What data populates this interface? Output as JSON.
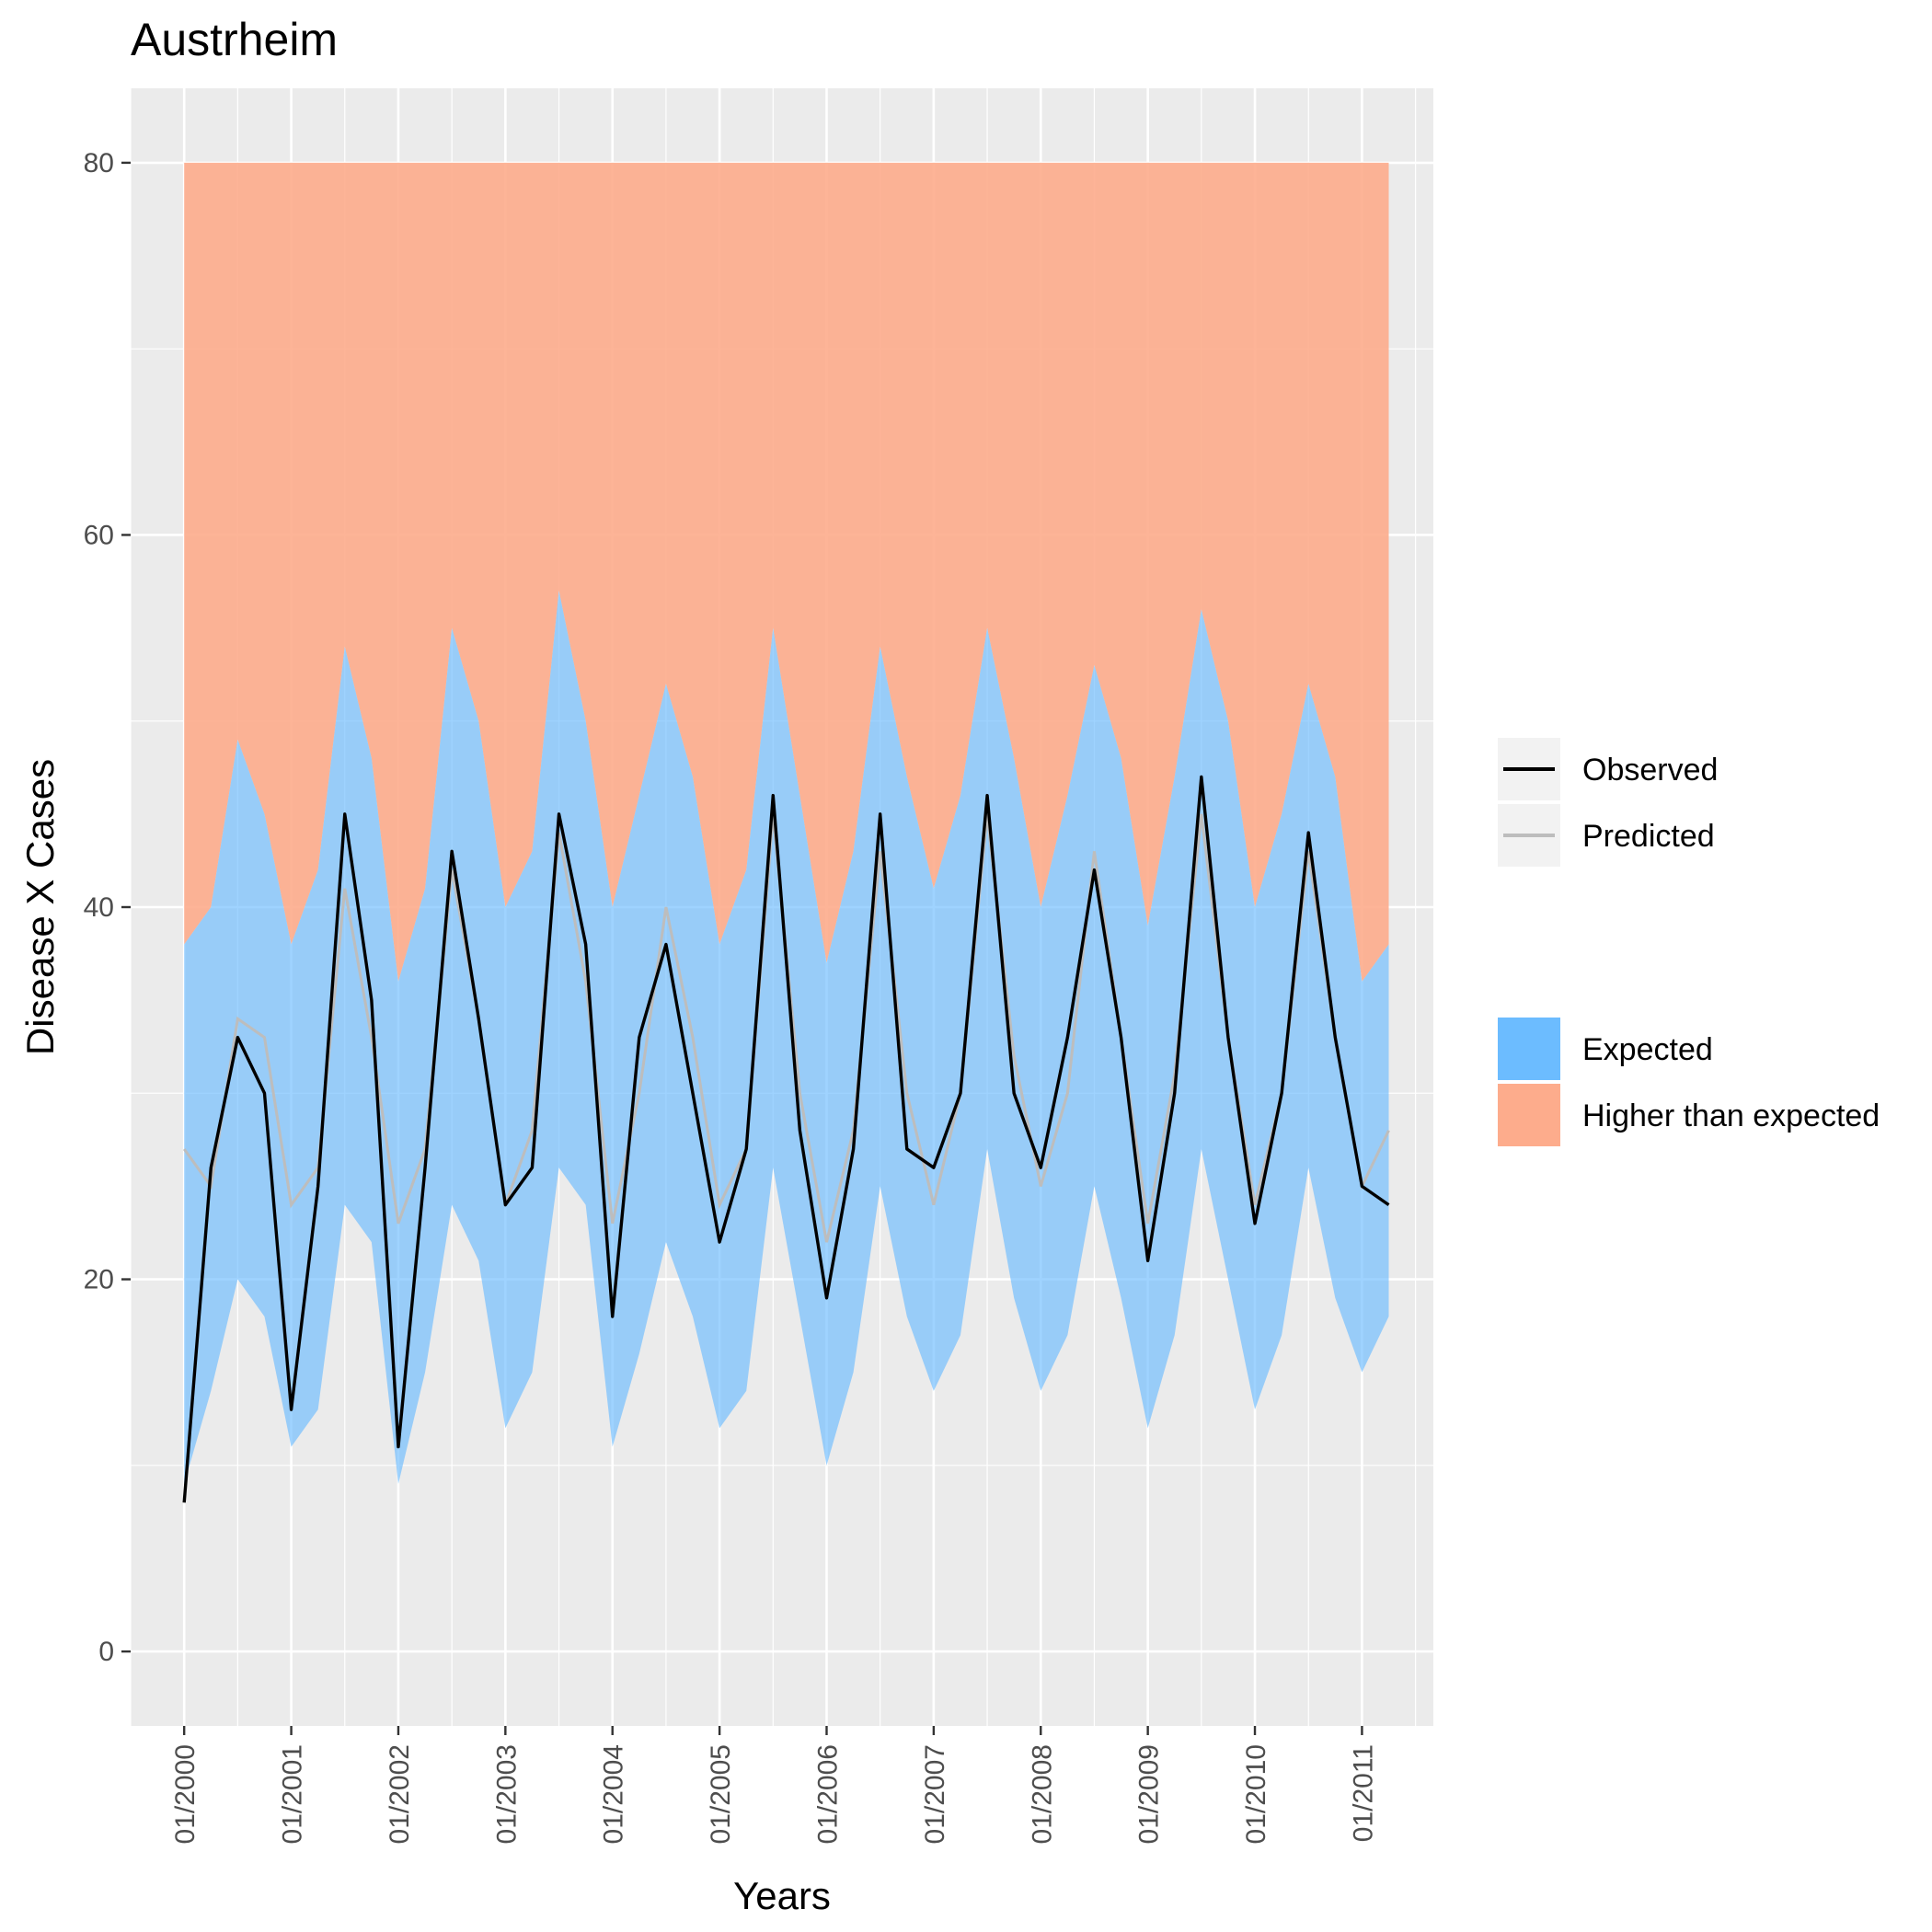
{
  "chart_data": {
    "type": "line",
    "title": "Austrheim",
    "xlabel": "Years",
    "ylabel": "Disease X Cases",
    "x_tick_labels": [
      "01/2000",
      "01/2001",
      "01/2002",
      "01/2003",
      "01/2004",
      "01/2005",
      "01/2006",
      "01/2007",
      "01/2008",
      "01/2009",
      "01/2010",
      "01/2011"
    ],
    "x_tick_dates": [
      "2000-01",
      "2001-01",
      "2002-01",
      "2003-01",
      "2004-01",
      "2005-01",
      "2006-01",
      "2007-01",
      "2008-01",
      "2009-01",
      "2010-01",
      "2011-01"
    ],
    "xlim": [
      "1999-07",
      "2011-09"
    ],
    "y_ticks": [
      0,
      20,
      40,
      60,
      80
    ],
    "ylim": [
      -4,
      84
    ],
    "grid": true,
    "legend_position": "right",
    "higher_than_expected_ceiling": 80,
    "x": [
      "2000-01",
      "2000-04",
      "2000-07",
      "2000-10",
      "2001-01",
      "2001-04",
      "2001-07",
      "2001-10",
      "2002-01",
      "2002-04",
      "2002-07",
      "2002-10",
      "2003-01",
      "2003-04",
      "2003-07",
      "2003-10",
      "2004-01",
      "2004-04",
      "2004-07",
      "2004-10",
      "2005-01",
      "2005-04",
      "2005-07",
      "2005-10",
      "2006-01",
      "2006-04",
      "2006-07",
      "2006-10",
      "2007-01",
      "2007-04",
      "2007-07",
      "2007-10",
      "2008-01",
      "2008-04",
      "2008-07",
      "2008-10",
      "2009-01",
      "2009-04",
      "2009-07",
      "2009-10",
      "2010-01",
      "2010-04",
      "2010-07",
      "2010-10",
      "2011-01",
      "2011-04"
    ],
    "series": [
      {
        "name": "Observed",
        "color": "#000000",
        "values": [
          8,
          26,
          33,
          30,
          13,
          25,
          45,
          35,
          11,
          26,
          43,
          34,
          24,
          26,
          45,
          38,
          18,
          33,
          38,
          30,
          22,
          27,
          46,
          28,
          19,
          27,
          45,
          27,
          26,
          30,
          46,
          30,
          26,
          33,
          42,
          33,
          21,
          30,
          47,
          33,
          23,
          30,
          44,
          33,
          25,
          24
        ]
      },
      {
        "name": "Predicted",
        "color": "#bdbdbd",
        "values": [
          27,
          25,
          34,
          33,
          24,
          26,
          41,
          33,
          23,
          27,
          42,
          34,
          24,
          28,
          44,
          36,
          23,
          30,
          40,
          33,
          24,
          27,
          45,
          30,
          22,
          28,
          43,
          30,
          24,
          30,
          45,
          32,
          25,
          30,
          43,
          33,
          23,
          31,
          45,
          33,
          24,
          30,
          43,
          33,
          25,
          28
        ]
      },
      {
        "name": "Expected",
        "color": "#6cbcff",
        "lower": [
          9,
          14,
          20,
          18,
          11,
          13,
          24,
          22,
          9,
          15,
          24,
          21,
          12,
          15,
          26,
          24,
          11,
          16,
          22,
          18,
          12,
          14,
          26,
          18,
          10,
          15,
          25,
          18,
          14,
          17,
          27,
          19,
          14,
          17,
          25,
          19,
          12,
          17,
          27,
          20,
          13,
          17,
          26,
          19,
          15,
          18
        ],
        "upper": [
          38,
          40,
          49,
          45,
          38,
          42,
          54,
          48,
          36,
          41,
          55,
          50,
          40,
          43,
          57,
          50,
          40,
          46,
          52,
          47,
          38,
          42,
          55,
          46,
          37,
          43,
          54,
          47,
          41,
          46,
          55,
          48,
          40,
          46,
          53,
          48,
          39,
          47,
          56,
          50,
          40,
          45,
          52,
          47,
          36,
          38
        ]
      },
      {
        "name": "Higher than expected",
        "color": "#fdac8c",
        "lower_from": "Expected.upper",
        "upper": 80
      }
    ]
  },
  "legend": {
    "lines": [
      {
        "label": "Observed",
        "color": "#000000"
      },
      {
        "label": "Predicted",
        "color": "#bdbdbd"
      }
    ],
    "fills": [
      {
        "label": "Expected",
        "color": "#6cbcff"
      },
      {
        "label": "Higher than expected",
        "color": "#fdac8c"
      }
    ]
  },
  "colors": {
    "panel_background": "#ebebeb",
    "gridline": "#ffffff",
    "tick_text": "#4d4d4d"
  }
}
